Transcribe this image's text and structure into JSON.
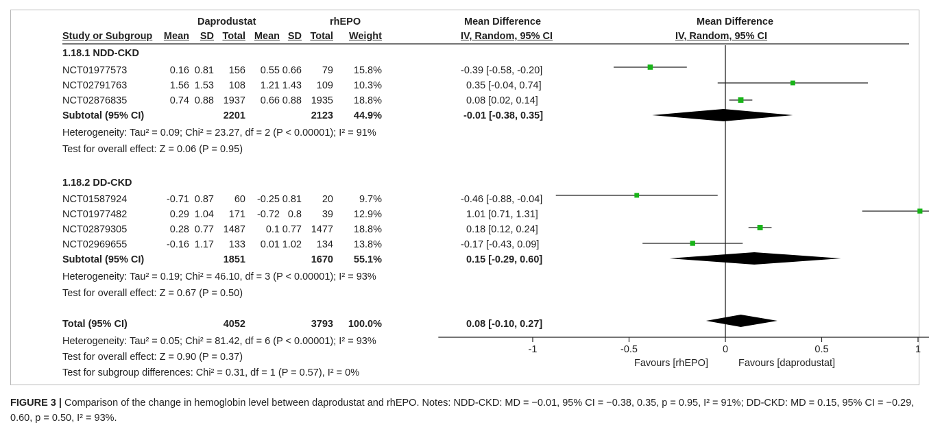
{
  "headers": {
    "group_dap": "Daprodustat",
    "group_epo": "rhEPO",
    "md_col": "Mean Difference",
    "md_plot": "Mean Difference",
    "study_col": "Study or Subgroup",
    "mean": "Mean",
    "sd": "SD",
    "total": "Total",
    "weight": "Weight",
    "ci_col": "IV, Random, 95% CI",
    "ci_plot": "IV, Random, 95% CI"
  },
  "subgroups": [
    {
      "title": "1.18.1 NDD-CKD",
      "studies": [
        {
          "name": "NCT01977573",
          "d_mean": "0.16",
          "d_sd": "0.81",
          "d_total": "156",
          "e_mean": "0.55",
          "e_sd": "0.66",
          "e_total": "79",
          "weight": "15.8%",
          "ci": "-0.39 [-0.58, -0.20]"
        },
        {
          "name": "NCT02791763",
          "d_mean": "1.56",
          "d_sd": "1.53",
          "d_total": "108",
          "e_mean": "1.21",
          "e_sd": "1.43",
          "e_total": "109",
          "weight": "10.3%",
          "ci": "0.35 [-0.04, 0.74]"
        },
        {
          "name": "NCT02876835",
          "d_mean": "0.74",
          "d_sd": "0.88",
          "d_total": "1937",
          "e_mean": "0.66",
          "e_sd": "0.88",
          "e_total": "1935",
          "weight": "18.8%",
          "ci": "0.08 [0.02, 0.14]"
        }
      ],
      "subtotal": {
        "label": "Subtotal (95% CI)",
        "d_total": "2201",
        "e_total": "2123",
        "weight": "44.9%",
        "ci": "-0.01 [-0.38, 0.35]"
      },
      "heterogeneity": "Heterogeneity: Tau² = 0.09; Chi² = 23.27, df = 2 (P < 0.00001); I² = 91%",
      "overall": "Test for overall effect: Z = 0.06 (P = 0.95)"
    },
    {
      "title": "1.18.2 DD-CKD",
      "studies": [
        {
          "name": "NCT01587924",
          "d_mean": "-0.71",
          "d_sd": "0.87",
          "d_total": "60",
          "e_mean": "-0.25",
          "e_sd": "0.81",
          "e_total": "20",
          "weight": "9.7%",
          "ci": "-0.46 [-0.88, -0.04]"
        },
        {
          "name": "NCT01977482",
          "d_mean": "0.29",
          "d_sd": "1.04",
          "d_total": "171",
          "e_mean": "-0.72",
          "e_sd": "0.8",
          "e_total": "39",
          "weight": "12.9%",
          "ci": "1.01 [0.71, 1.31]"
        },
        {
          "name": "NCT02879305",
          "d_mean": "0.28",
          "d_sd": "0.77",
          "d_total": "1487",
          "e_mean": "0.1",
          "e_sd": "0.77",
          "e_total": "1477",
          "weight": "18.8%",
          "ci": "0.18 [0.12, 0.24]"
        },
        {
          "name": "NCT02969655",
          "d_mean": "-0.16",
          "d_sd": "1.17",
          "d_total": "133",
          "e_mean": "0.01",
          "e_sd": "1.02",
          "e_total": "134",
          "weight": "13.8%",
          "ci": "-0.17 [-0.43, 0.09]"
        }
      ],
      "subtotal": {
        "label": "Subtotal (95% CI)",
        "d_total": "1851",
        "e_total": "1670",
        "weight": "55.1%",
        "ci": "0.15 [-0.29, 0.60]"
      },
      "heterogeneity": "Heterogeneity: Tau² = 0.19; Chi² = 46.10, df = 3 (P < 0.00001); I² = 93%",
      "overall": "Test for overall effect: Z = 0.67 (P = 0.50)"
    }
  ],
  "total": {
    "label": "Total (95% CI)",
    "d_total": "4052",
    "e_total": "3793",
    "weight": "100.0%",
    "ci": "0.08 [-0.10, 0.27]"
  },
  "footer": {
    "heterogeneity": "Heterogeneity: Tau² = 0.05; Chi² = 81.42, df = 6 (P < 0.00001); I² = 93%",
    "overall": "Test for overall effect: Z = 0.90 (P = 0.37)",
    "subgroup": "Test for subgroup differences: Chi² = 0.31, df = 1 (P = 0.57), I² = 0%"
  },
  "axis": {
    "favours_left": "Favours [rhEPO]",
    "favours_right": "Favours [daprodustat]"
  },
  "caption": {
    "figure_label": "FIGURE 3 |",
    "text": " Comparison of the change in hemoglobin level between daprodustat and rhEPO. Notes: NDD-CKD: MD = −0.01, 95% CI = −0.38, 0.35, p = 0.95, I² = 91%; DD-CKD: MD = 0.15, 95% CI = −0.29, 0.60, p = 0.50, I² = 93%."
  },
  "colors": {
    "marker": "#18b418",
    "diamond": "#000000",
    "line": "#222222"
  },
  "chart_data": {
    "type": "forest",
    "x_ticks": [
      -1,
      -0.5,
      0,
      0.5,
      1
    ],
    "xlim": [
      -1.5,
      1.5
    ],
    "studies": [
      {
        "name": "NCT01977573",
        "md": -0.39,
        "lo": -0.58,
        "hi": -0.2,
        "weight": 15.8
      },
      {
        "name": "NCT02791763",
        "md": 0.35,
        "lo": -0.04,
        "hi": 0.74,
        "weight": 10.3
      },
      {
        "name": "NCT02876835",
        "md": 0.08,
        "lo": 0.02,
        "hi": 0.14,
        "weight": 18.8
      },
      {
        "name": "NCT01587924",
        "md": -0.46,
        "lo": -0.88,
        "hi": -0.04,
        "weight": 9.7
      },
      {
        "name": "NCT01977482",
        "md": 1.01,
        "lo": 0.71,
        "hi": 1.31,
        "weight": 12.9
      },
      {
        "name": "NCT02879305",
        "md": 0.18,
        "lo": 0.12,
        "hi": 0.24,
        "weight": 18.8
      },
      {
        "name": "NCT02969655",
        "md": -0.17,
        "lo": -0.43,
        "hi": 0.09,
        "weight": 13.8
      }
    ],
    "summaries": [
      {
        "name": "Subtotal NDD-CKD",
        "md": -0.01,
        "lo": -0.38,
        "hi": 0.35
      },
      {
        "name": "Subtotal DD-CKD",
        "md": 0.15,
        "lo": -0.29,
        "hi": 0.6
      },
      {
        "name": "Total",
        "md": 0.08,
        "lo": -0.1,
        "hi": 0.27
      }
    ]
  }
}
